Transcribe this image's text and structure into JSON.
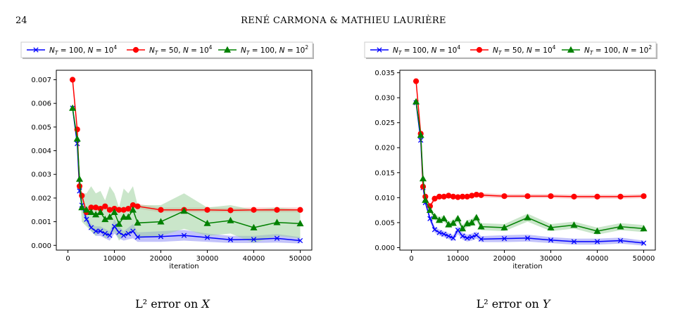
{
  "header": {
    "page_number": "24",
    "running_title": "RENÉ CARMONA & MATHIEU LAURIÈRE"
  },
  "colors": {
    "series1": "#0000ff",
    "series2": "#ff0000",
    "series3": "#008000",
    "band1": "#8f8ff5",
    "band2": "#f7a3a3",
    "band3": "#9ed19e"
  },
  "captions": {
    "left": {
      "prefix": "L² error on ",
      "var": "X"
    },
    "right": {
      "prefix": "L² error on ",
      "var": "Y"
    }
  },
  "chart_data": [
    {
      "type": "line",
      "xlabel": "iteration",
      "ylabel": "",
      "xlim": [
        -2500,
        52500
      ],
      "ylim": [
        -0.0002,
        0.0074
      ],
      "xticks": [
        0,
        10000,
        20000,
        30000,
        40000,
        50000
      ],
      "xtick_labels": [
        "0",
        "10000",
        "20000",
        "30000",
        "40000",
        "50000"
      ],
      "yticks": [
        0,
        0.001,
        0.002,
        0.003,
        0.004,
        0.005,
        0.006,
        0.007
      ],
      "ytick_labels": [
        "0.000",
        "0.001",
        "0.002",
        "0.003",
        "0.004",
        "0.005",
        "0.006",
        "0.007"
      ],
      "grid": false,
      "legend_position": "top",
      "series": [
        {
          "name": "N_T = 100, N = 10^4",
          "legend_main": "N",
          "legend_sub": "T",
          "legend_mid": " = 100, ",
          "legend_n": "N",
          "legend_eq": " = 10",
          "legend_exp": "4",
          "marker": "x",
          "x": [
            1000,
            2000,
            2500,
            3000,
            4000,
            5000,
            6000,
            7000,
            8000,
            9000,
            10000,
            11000,
            12000,
            13000,
            14000,
            15000,
            20000,
            25000,
            30000,
            35000,
            40000,
            45000,
            50000
          ],
          "y": [
            0.0058,
            0.0043,
            0.0023,
            0.0017,
            0.0011,
            0.00075,
            0.0006,
            0.0006,
            0.0005,
            0.00042,
            0.0008,
            0.00055,
            0.00042,
            0.0005,
            0.0006,
            0.00035,
            0.00037,
            0.00042,
            0.00033,
            0.00024,
            0.00025,
            0.0003,
            0.0002
          ],
          "lower": [
            0.0057,
            0.0041,
            0.0021,
            0.0015,
            0.0009,
            0.0006,
            0.0004,
            0.0004,
            0.0003,
            0.0002,
            0.0005,
            0.0003,
            0.0002,
            0.00025,
            0.0003,
            0.00015,
            0.00015,
            0.0002,
            0.00015,
            0.0001,
            0.0001,
            0.00012,
            8e-05
          ],
          "upper": [
            0.0059,
            0.0045,
            0.0026,
            0.0019,
            0.0013,
            0.0009,
            0.0008,
            0.0008,
            0.0007,
            0.0006,
            0.0011,
            0.0008,
            0.0006,
            0.00075,
            0.0009,
            0.00055,
            0.0006,
            0.00065,
            0.0005,
            0.0004,
            0.0004,
            0.00048,
            0.00035
          ]
        },
        {
          "name": "N_T = 50, N = 10^4",
          "legend_main": "N",
          "legend_sub": "T",
          "legend_mid": " = 50, ",
          "legend_n": "N",
          "legend_eq": " = 10",
          "legend_exp": "4",
          "marker": "o",
          "x": [
            1000,
            2000,
            2500,
            3000,
            4000,
            5000,
            6000,
            7000,
            8000,
            9000,
            10000,
            11000,
            12000,
            13000,
            14000,
            15000,
            20000,
            25000,
            30000,
            35000,
            40000,
            45000,
            50000
          ],
          "y": [
            0.007,
            0.0049,
            0.0025,
            0.0021,
            0.0014,
            0.0016,
            0.0016,
            0.00155,
            0.00165,
            0.0015,
            0.00155,
            0.0015,
            0.0015,
            0.00155,
            0.0017,
            0.00165,
            0.0015,
            0.0015,
            0.0015,
            0.00148,
            0.0015,
            0.0015,
            0.0015
          ],
          "lower": [
            0.0069,
            0.0048,
            0.0024,
            0.002,
            0.0013,
            0.00148,
            0.0015,
            0.00145,
            0.00155,
            0.0014,
            0.00145,
            0.0014,
            0.0014,
            0.00145,
            0.0016,
            0.00155,
            0.0014,
            0.0014,
            0.0014,
            0.0014,
            0.0014,
            0.0014,
            0.0014
          ],
          "upper": [
            0.0071,
            0.005,
            0.0026,
            0.0022,
            0.0015,
            0.00172,
            0.0017,
            0.00165,
            0.00175,
            0.0016,
            0.00165,
            0.0016,
            0.0016,
            0.00165,
            0.0018,
            0.00175,
            0.0016,
            0.0016,
            0.0016,
            0.00158,
            0.0016,
            0.0016,
            0.0016
          ]
        },
        {
          "name": "N_T = 100, N = 10^2",
          "legend_main": "N",
          "legend_sub": "T",
          "legend_mid": " = 100, ",
          "legend_n": "N",
          "legend_eq": " = 10",
          "legend_exp": "2",
          "marker": "^",
          "x": [
            1000,
            2000,
            2500,
            3000,
            4000,
            5000,
            6000,
            7000,
            8000,
            9000,
            10000,
            11000,
            12000,
            13000,
            14000,
            15000,
            20000,
            25000,
            30000,
            35000,
            40000,
            45000,
            50000
          ],
          "y": [
            0.0058,
            0.0045,
            0.0028,
            0.0016,
            0.0015,
            0.0014,
            0.0013,
            0.0014,
            0.0011,
            0.0012,
            0.0014,
            0.0009,
            0.0012,
            0.0012,
            0.0015,
            0.00095,
            0.001,
            0.00145,
            0.00093,
            0.00105,
            0.00075,
            0.00097,
            0.00092
          ],
          "lower": [
            0.0057,
            0.0043,
            0.0025,
            0.001,
            0.0008,
            0.0006,
            0.0004,
            0.0006,
            0.0003,
            0.0004,
            0.0006,
            0.0002,
            0.0004,
            0.0004,
            0.0006,
            0.0003,
            0.0004,
            0.0007,
            0.0004,
            0.0005,
            0.0001,
            0.0004,
            0.0003
          ],
          "upper": [
            0.0059,
            0.0047,
            0.0031,
            0.0022,
            0.0022,
            0.0025,
            0.0022,
            0.0023,
            0.0019,
            0.0025,
            0.0022,
            0.0016,
            0.0024,
            0.0022,
            0.0025,
            0.0017,
            0.0017,
            0.0022,
            0.0016,
            0.0017,
            0.0015,
            0.0016,
            0.0015
          ]
        }
      ]
    },
    {
      "type": "line",
      "xlabel": "iteration",
      "ylabel": "",
      "xlim": [
        -2500,
        52500
      ],
      "ylim": [
        -0.0005,
        0.0355
      ],
      "xticks": [
        0,
        10000,
        20000,
        30000,
        40000,
        50000
      ],
      "xtick_labels": [
        "0",
        "10000",
        "20000",
        "30000",
        "40000",
        "50000"
      ],
      "yticks": [
        0,
        0.005,
        0.01,
        0.015,
        0.02,
        0.025,
        0.03,
        0.035
      ],
      "ytick_labels": [
        "0.000",
        "0.005",
        "0.010",
        "0.015",
        "0.020",
        "0.025",
        "0.030",
        "0.035"
      ],
      "grid": false,
      "legend_position": "top",
      "series": [
        {
          "name": "N_T = 100, N = 10^4",
          "legend_main": "N",
          "legend_sub": "T",
          "legend_mid": " = 100, ",
          "legend_n": "N",
          "legend_eq": " = 10",
          "legend_exp": "4",
          "marker": "x",
          "x": [
            1000,
            2000,
            2500,
            3000,
            4000,
            5000,
            6000,
            7000,
            8000,
            9000,
            10000,
            11000,
            12000,
            13000,
            14000,
            15000,
            20000,
            25000,
            30000,
            35000,
            40000,
            45000,
            50000
          ],
          "y": [
            0.029,
            0.0215,
            0.012,
            0.009,
            0.0058,
            0.0036,
            0.003,
            0.0027,
            0.0023,
            0.0019,
            0.0035,
            0.0023,
            0.0019,
            0.0021,
            0.0025,
            0.0017,
            0.0018,
            0.0019,
            0.0015,
            0.0012,
            0.0012,
            0.0014,
            0.0009
          ],
          "lower": [
            0.0288,
            0.0212,
            0.0115,
            0.0085,
            0.0052,
            0.003,
            0.0024,
            0.0021,
            0.0017,
            0.0013,
            0.0027,
            0.0016,
            0.0012,
            0.0014,
            0.0018,
            0.0011,
            0.0011,
            0.0012,
            0.0009,
            0.0006,
            0.0006,
            0.0008,
            0.0004
          ],
          "upper": [
            0.0292,
            0.0218,
            0.0125,
            0.0095,
            0.0064,
            0.0042,
            0.0036,
            0.0033,
            0.0029,
            0.0025,
            0.0043,
            0.003,
            0.0026,
            0.0028,
            0.0032,
            0.0023,
            0.0025,
            0.0026,
            0.0021,
            0.0018,
            0.0018,
            0.002,
            0.0014
          ]
        },
        {
          "name": "N_T = 50, N = 10^4",
          "legend_main": "N",
          "legend_sub": "T",
          "legend_mid": " = 50, ",
          "legend_n": "N",
          "legend_eq": " = 10",
          "legend_exp": "4",
          "marker": "o",
          "x": [
            1000,
            2000,
            2500,
            3000,
            4000,
            5000,
            6000,
            7000,
            8000,
            9000,
            10000,
            11000,
            12000,
            13000,
            14000,
            15000,
            20000,
            25000,
            30000,
            35000,
            40000,
            45000,
            50000
          ],
          "y": [
            0.0333,
            0.0228,
            0.0122,
            0.0102,
            0.0083,
            0.0098,
            0.0102,
            0.0102,
            0.0104,
            0.0102,
            0.0101,
            0.0102,
            0.0102,
            0.0104,
            0.0106,
            0.0105,
            0.0103,
            0.0103,
            0.0103,
            0.0102,
            0.0102,
            0.0102,
            0.0103
          ],
          "lower": [
            0.0331,
            0.0225,
            0.0119,
            0.0099,
            0.008,
            0.0094,
            0.0098,
            0.0098,
            0.01,
            0.0098,
            0.0097,
            0.0098,
            0.0098,
            0.01,
            0.0102,
            0.0101,
            0.0099,
            0.0099,
            0.0099,
            0.0098,
            0.0098,
            0.0098,
            0.0099
          ],
          "upper": [
            0.0335,
            0.0231,
            0.0125,
            0.0105,
            0.0086,
            0.0102,
            0.0106,
            0.0106,
            0.0108,
            0.0106,
            0.0105,
            0.0106,
            0.0106,
            0.0108,
            0.011,
            0.0109,
            0.0107,
            0.0107,
            0.0107,
            0.0106,
            0.0106,
            0.0106,
            0.0107
          ]
        },
        {
          "name": "N_T = 100, N = 10^2",
          "legend_main": "N",
          "legend_sub": "T",
          "legend_mid": " = 100, ",
          "legend_n": "N",
          "legend_eq": " = 10",
          "legend_exp": "2",
          "marker": "^",
          "x": [
            1000,
            2000,
            2500,
            3000,
            4000,
            5000,
            6000,
            7000,
            8000,
            9000,
            10000,
            11000,
            12000,
            13000,
            14000,
            15000,
            20000,
            25000,
            30000,
            35000,
            40000,
            45000,
            50000
          ],
          "y": [
            0.0292,
            0.0225,
            0.0138,
            0.0095,
            0.0075,
            0.0062,
            0.0055,
            0.0058,
            0.0046,
            0.0049,
            0.0058,
            0.0038,
            0.0048,
            0.005,
            0.006,
            0.0042,
            0.004,
            0.006,
            0.004,
            0.0045,
            0.0033,
            0.0042,
            0.0038
          ],
          "lower": [
            0.029,
            0.0222,
            0.0134,
            0.009,
            0.007,
            0.0056,
            0.0049,
            0.0052,
            0.004,
            0.0043,
            0.0051,
            0.0031,
            0.0041,
            0.0043,
            0.0053,
            0.0035,
            0.0033,
            0.0052,
            0.0033,
            0.0038,
            0.0026,
            0.0035,
            0.0031
          ],
          "upper": [
            0.0294,
            0.0228,
            0.0142,
            0.01,
            0.008,
            0.0068,
            0.0061,
            0.0064,
            0.0052,
            0.0055,
            0.0065,
            0.0045,
            0.0055,
            0.0057,
            0.0067,
            0.0049,
            0.0047,
            0.0068,
            0.0047,
            0.0052,
            0.004,
            0.0049,
            0.0045
          ]
        }
      ]
    }
  ]
}
